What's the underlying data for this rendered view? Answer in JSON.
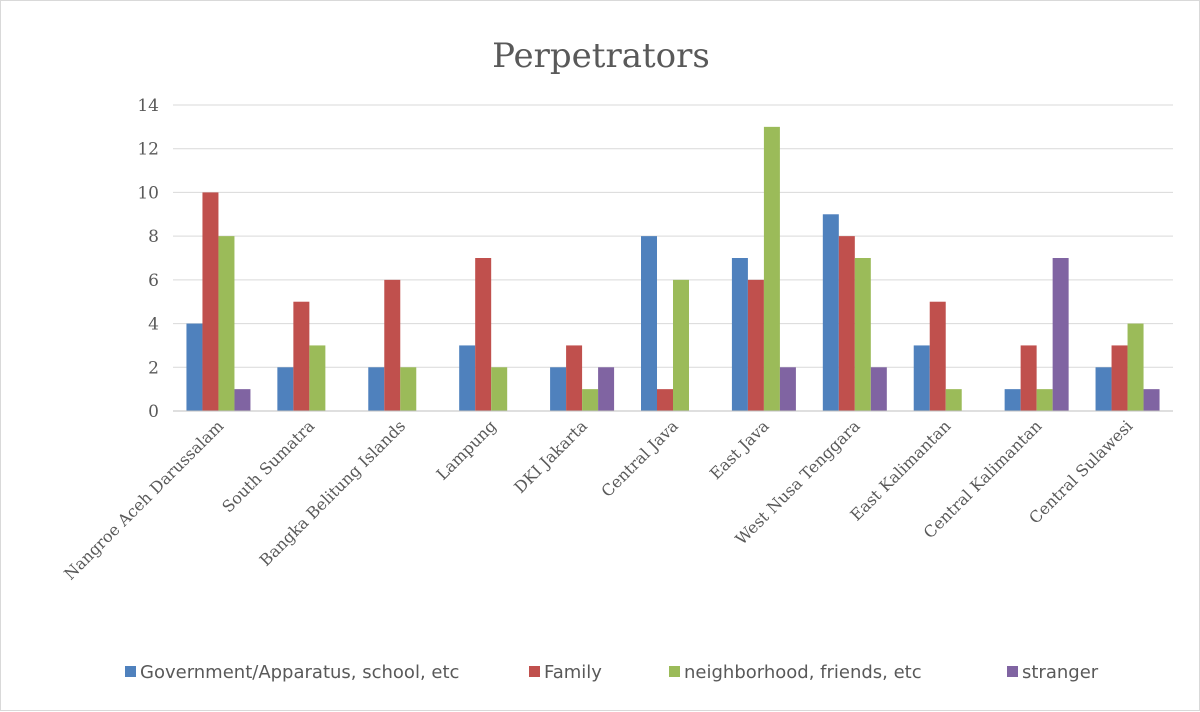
{
  "chart_data": {
    "type": "bar",
    "title": "Perpetrators",
    "xlabel": "",
    "ylabel": "",
    "ylim": [
      0,
      14
    ],
    "yticks": [
      0,
      2,
      4,
      6,
      8,
      10,
      12,
      14
    ],
    "grid": true,
    "legend_position": "bottom",
    "categories": [
      "Nangroe Aceh Darussalam",
      "South Sumatra",
      "Bangka Belitung Islands",
      "Lampung",
      "DKI Jakarta",
      "Central Java",
      "East Java",
      "West Nusa Tenggara",
      "East Kalimantan",
      "Central Kalimantan",
      "Central Sulawesi"
    ],
    "series": [
      {
        "name": "Government/Apparatus, school, etc",
        "color": "#4f81bd",
        "values": [
          4,
          2,
          2,
          3,
          2,
          8,
          7,
          9,
          3,
          1,
          2
        ]
      },
      {
        "name": "Family",
        "color": "#c0504d",
        "values": [
          10,
          5,
          6,
          7,
          3,
          1,
          6,
          8,
          5,
          3,
          3
        ]
      },
      {
        "name": "neighborhood, friends, etc",
        "color": "#9bbb59",
        "values": [
          8,
          3,
          2,
          2,
          1,
          6,
          13,
          7,
          1,
          1,
          4
        ]
      },
      {
        "name": "stranger",
        "color": "#8064a2",
        "values": [
          1,
          0,
          0,
          0,
          2,
          0,
          2,
          2,
          0,
          7,
          1
        ]
      }
    ]
  }
}
